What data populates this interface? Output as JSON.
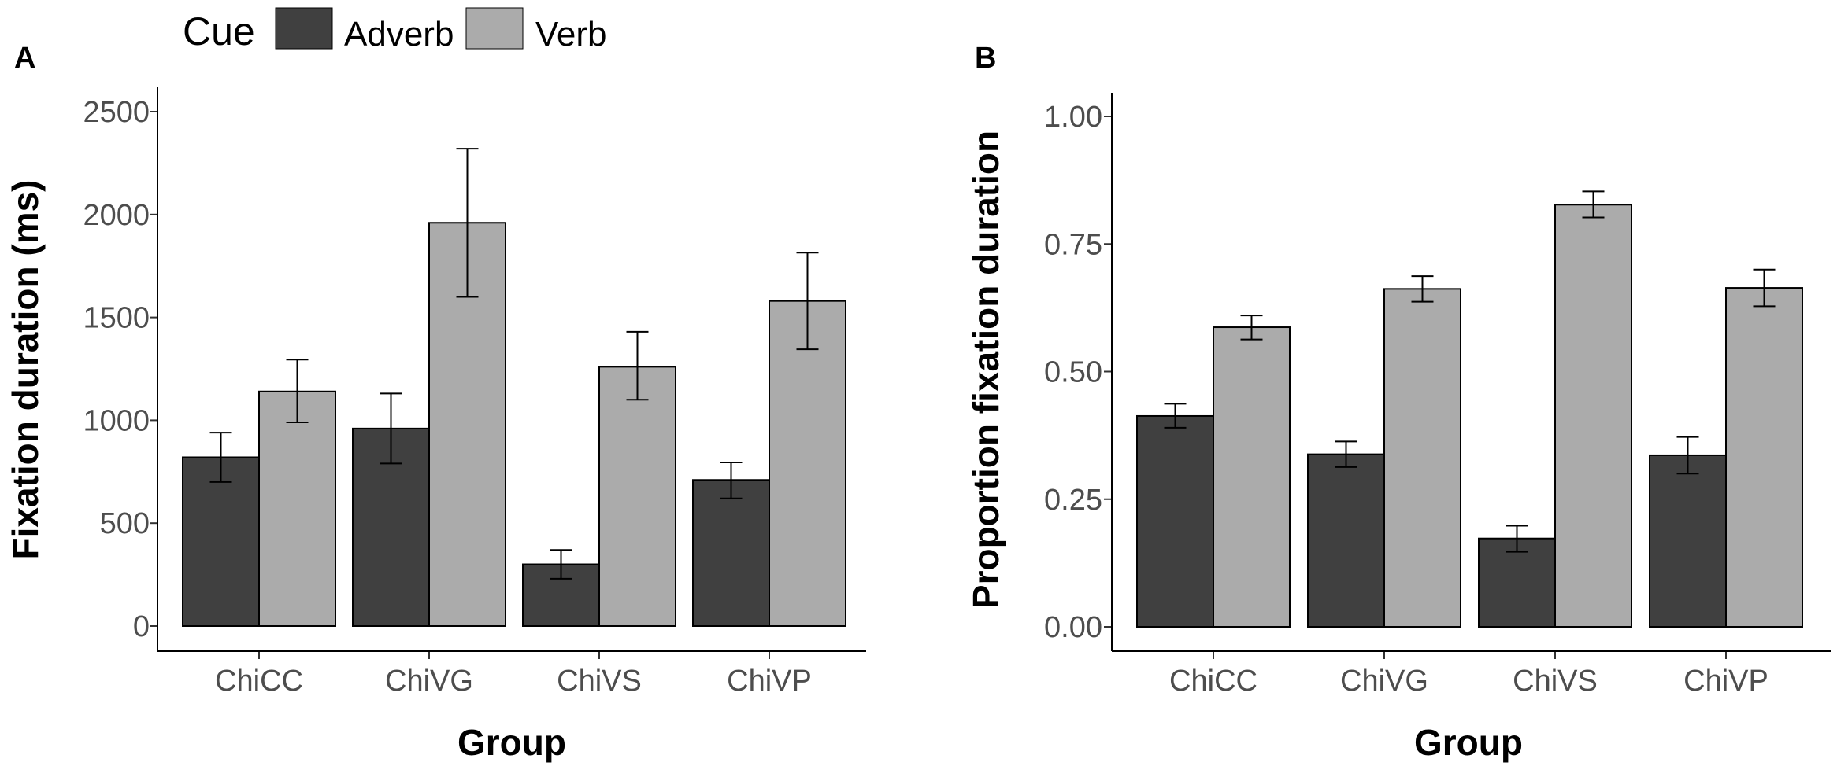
{
  "legend": {
    "title": "Cue",
    "items": [
      {
        "label": "Adverb",
        "color": "#404040"
      },
      {
        "label": "Verb",
        "color": "#ababab"
      }
    ]
  },
  "chart_data": [
    {
      "panel_label": "A",
      "type": "bar",
      "title": "",
      "xlabel": "Group",
      "ylabel": "Fixation duration (ms)",
      "categories": [
        "ChiCC",
        "ChiVG",
        "ChiVS",
        "ChiVP"
      ],
      "ylim": [
        0,
        2500
      ],
      "yticks": [
        0,
        500,
        1000,
        1500,
        2000,
        2500
      ],
      "ytick_labels": [
        "0",
        "500",
        "1000",
        "1500",
        "2000",
        "2500"
      ],
      "series": [
        {
          "name": "Adverb",
          "color": "#404040",
          "values": [
            820,
            960,
            300,
            710
          ],
          "err_low": [
            700,
            790,
            230,
            620
          ],
          "err_high": [
            940,
            1130,
            370,
            795
          ]
        },
        {
          "name": "Verb",
          "color": "#ababab",
          "values": [
            1140,
            1960,
            1260,
            1580
          ],
          "err_low": [
            990,
            1600,
            1100,
            1345
          ],
          "err_high": [
            1295,
            2320,
            1430,
            1815
          ]
        }
      ]
    },
    {
      "panel_label": "B",
      "type": "bar",
      "title": "",
      "xlabel": "Group",
      "ylabel": "Proportion fixation duration",
      "categories": [
        "ChiCC",
        "ChiVG",
        "ChiVS",
        "ChiVP"
      ],
      "ylim": [
        0,
        1.0
      ],
      "yticks": [
        0,
        0.25,
        0.5,
        0.75,
        1.0
      ],
      "ytick_labels": [
        "0.00",
        "0.25",
        "0.50",
        "0.75",
        "1.00"
      ],
      "series": [
        {
          "name": "Adverb",
          "color": "#404040",
          "values": [
            0.413,
            0.338,
            0.173,
            0.336
          ],
          "err_low": [
            0.39,
            0.313,
            0.147,
            0.3
          ],
          "err_high": [
            0.437,
            0.363,
            0.198,
            0.372
          ]
        },
        {
          "name": "Verb",
          "color": "#ababab",
          "values": [
            0.587,
            0.662,
            0.827,
            0.664
          ],
          "err_low": [
            0.563,
            0.637,
            0.802,
            0.628
          ],
          "err_high": [
            0.61,
            0.687,
            0.853,
            0.7
          ]
        }
      ]
    }
  ]
}
